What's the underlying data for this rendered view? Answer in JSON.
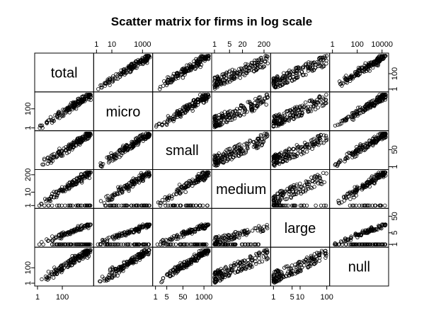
{
  "chart_data": {
    "type": "scatter",
    "title": "Scatter matrix for firms in log scale",
    "variables": [
      "total",
      "micro",
      "small",
      "medium",
      "large",
      "null"
    ],
    "log_scale": true,
    "grid": false,
    "point_style": "open-circle",
    "axes": {
      "total": {
        "range": [
          1,
          20000
        ],
        "ticks": [
          {
            "value": 1,
            "label": "1"
          },
          {
            "value": 100,
            "label": "100"
          }
        ]
      },
      "micro": {
        "range": [
          1,
          3000
        ],
        "ticks": [
          {
            "value": 1,
            "label": "1"
          },
          {
            "value": 10,
            "label": "10"
          },
          {
            "value": 1000,
            "label": "1000"
          }
        ]
      },
      "small": {
        "range": [
          1,
          2000
        ],
        "ticks": [
          {
            "value": 1,
            "label": "1"
          },
          {
            "value": 5,
            "label": "5"
          },
          {
            "value": 50,
            "label": "50"
          },
          {
            "value": 1000,
            "label": "1000"
          }
        ]
      },
      "medium": {
        "range": [
          1,
          300
        ],
        "ticks": [
          {
            "value": 1,
            "label": "1"
          },
          {
            "value": 5,
            "label": "5"
          },
          {
            "value": 20,
            "label": "20"
          },
          {
            "value": 200,
            "label": "200"
          }
        ]
      },
      "large": {
        "range": [
          1,
          100
        ],
        "ticks": [
          {
            "value": 1,
            "label": "1"
          },
          {
            "value": 5,
            "label": "5"
          },
          {
            "value": 50,
            "label": "50"
          }
        ]
      },
      "null": {
        "range": [
          1,
          20000
        ],
        "ticks": [
          {
            "value": 1,
            "label": "1"
          },
          {
            "value": 100,
            "label": "100"
          },
          {
            "value": 10000,
            "label": "10000"
          }
        ]
      }
    },
    "axis_labels": {
      "top": [
        {
          "var": "micro",
          "ticks": [
            "1",
            "10",
            "1000"
          ]
        },
        {
          "var": "medium",
          "ticks": [
            "1",
            "5",
            "20",
            "200"
          ]
        },
        {
          "var": "null",
          "ticks": [
            "1",
            "100",
            "10000"
          ]
        }
      ],
      "bottom": [
        {
          "var": "total",
          "ticks": [
            "1",
            "100"
          ]
        },
        {
          "var": "small",
          "ticks": [
            "1",
            "5",
            "50",
            "1000"
          ]
        },
        {
          "var": "large",
          "ticks": [
            "1",
            "5",
            "10",
            "100"
          ]
        }
      ],
      "right": [
        {
          "var": "total",
          "ticks": [
            "1",
            "100"
          ]
        },
        {
          "var": "small",
          "ticks": [
            "1",
            "50"
          ]
        },
        {
          "var": "large",
          "ticks": [
            "1",
            "5",
            "50"
          ]
        }
      ],
      "left": [
        {
          "var": "micro",
          "ticks": [
            "1",
            "100"
          ]
        },
        {
          "var": "medium",
          "ticks": [
            "1",
            "10",
            "200"
          ]
        },
        {
          "var": "null",
          "ticks": [
            "1",
            "100"
          ]
        }
      ]
    }
  }
}
